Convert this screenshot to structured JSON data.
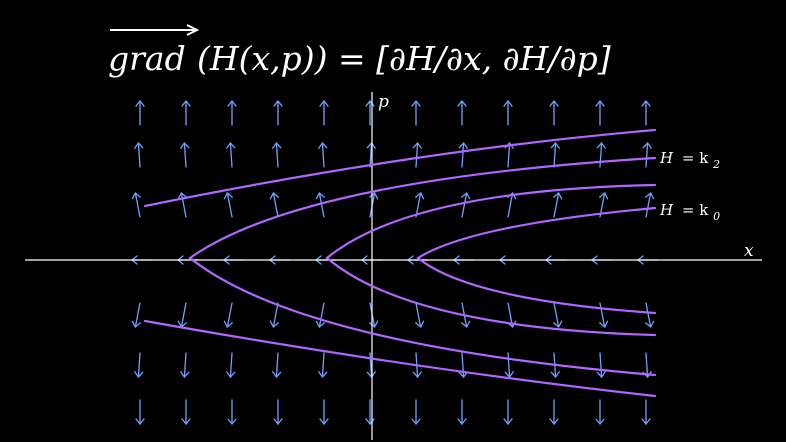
{
  "title": {
    "grad": "grad",
    "expression": "(H(x,p)) = [∂H/∂x, ∂H/∂p]"
  },
  "axes": {
    "x_label": "x",
    "p_label": "p",
    "axis_color": "#ffffff"
  },
  "curve_labels": [
    {
      "symbol": "H",
      "equals": "= k",
      "subscript": "2"
    },
    {
      "symbol": "H",
      "equals": "= k",
      "subscript": "0"
    }
  ],
  "colors": {
    "background": "#000000",
    "vector_arrows": "#6fa3ff",
    "level_curves": "#b366ff",
    "text": "#ffffff"
  },
  "vector_field": {
    "columns": 12,
    "rows_above_axis": 3,
    "rows_on_axis": 1,
    "rows_below_axis": 3,
    "direction_above": "up",
    "direction_on_axis": "left",
    "direction_below": "down"
  },
  "level_curves": {
    "count": 4,
    "shape": "sideways parabola opening right",
    "vertex_x_relative_to_p_axis": [
      "outer-left",
      "left",
      "right"
    ]
  }
}
